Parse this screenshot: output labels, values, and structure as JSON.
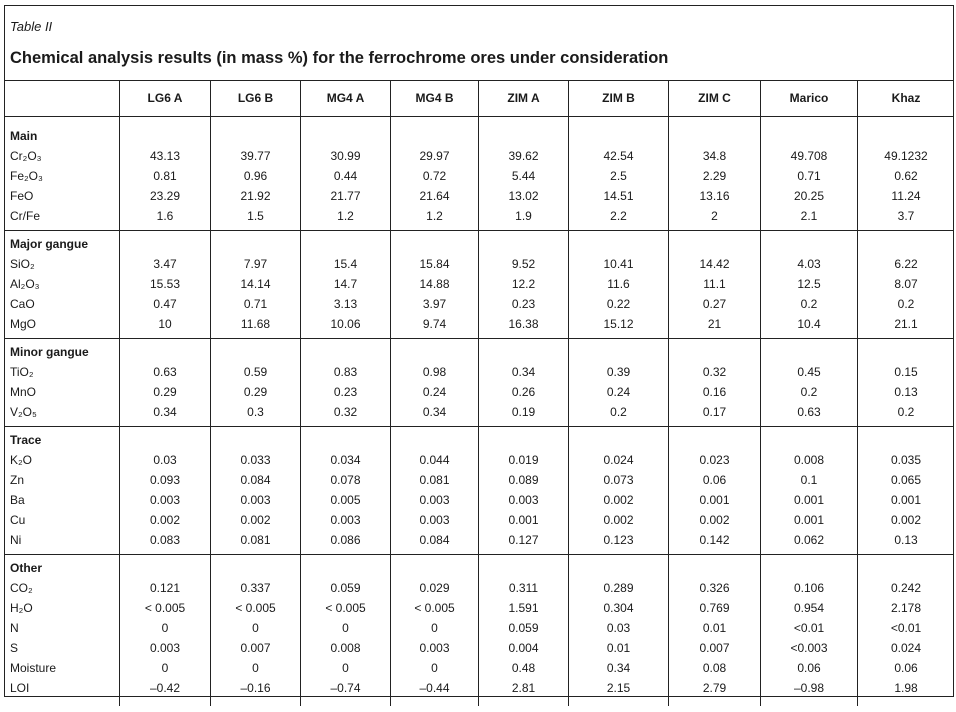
{
  "caption": "Table II",
  "title": "Chemical analysis results (in mass %) for the ferrochrome ores under consideration",
  "columns": [
    "",
    "LG6 A",
    "LG6 B",
    "MG4 A",
    "MG4 B",
    "ZIM A",
    "ZIM B",
    "ZIM C",
    "Marico",
    "Khaz"
  ],
  "sections": [
    {
      "name": "Main",
      "rows": [
        {
          "label": "Cr₂O₃",
          "values": [
            "43.13",
            "39.77",
            "30.99",
            "29.97",
            "39.62",
            "42.54",
            "34.8",
            "49.708",
            "49.1232"
          ]
        },
        {
          "label": "Fe₂O₃",
          "values": [
            "0.81",
            "0.96",
            "0.44",
            "0.72",
            "5.44",
            "2.5",
            "2.29",
            "0.71",
            "0.62"
          ]
        },
        {
          "label": "FeO",
          "values": [
            "23.29",
            "21.92",
            "21.77",
            "21.64",
            "13.02",
            "14.51",
            "13.16",
            "20.25",
            "11.24"
          ]
        },
        {
          "label": "Cr/Fe",
          "values": [
            "1.6",
            "1.5",
            "1.2",
            "1.2",
            "1.9",
            "2.2",
            "2",
            "2.1",
            "3.7"
          ]
        }
      ]
    },
    {
      "name": "Major gangue",
      "rows": [
        {
          "label": "SiO₂",
          "values": [
            "3.47",
            "7.97",
            "15.4",
            "15.84",
            "9.52",
            "10.41",
            "14.42",
            "4.03",
            "6.22"
          ]
        },
        {
          "label": "Al₂O₃",
          "values": [
            "15.53",
            "14.14",
            "14.7",
            "14.88",
            "12.2",
            "11.6",
            "11.1",
            "12.5",
            "8.07"
          ]
        },
        {
          "label": "CaO",
          "values": [
            "0.47",
            "0.71",
            "3.13",
            "3.97",
            "0.23",
            "0.22",
            "0.27",
            "0.2",
            "0.2"
          ]
        },
        {
          "label": "MgO",
          "values": [
            "10",
            "11.68",
            "10.06",
            "9.74",
            "16.38",
            "15.12",
            "21",
            "10.4",
            "21.1"
          ]
        }
      ]
    },
    {
      "name": "Minor gangue",
      "rows": [
        {
          "label": "TiO₂",
          "values": [
            "0.63",
            "0.59",
            "0.83",
            "0.98",
            "0.34",
            "0.39",
            "0.32",
            "0.45",
            "0.15"
          ]
        },
        {
          "label": "MnO",
          "values": [
            "0.29",
            "0.29",
            "0.23",
            "0.24",
            "0.26",
            "0.24",
            "0.16",
            "0.2",
            "0.13"
          ]
        },
        {
          "label": "V₂O₅",
          "values": [
            "0.34",
            "0.3",
            "0.32",
            "0.34",
            "0.19",
            "0.2",
            "0.17",
            "0.63",
            "0.2"
          ]
        }
      ]
    },
    {
      "name": "Trace",
      "rows": [
        {
          "label": "K₂O",
          "values": [
            "0.03",
            "0.033",
            "0.034",
            "0.044",
            "0.019",
            "0.024",
            "0.023",
            "0.008",
            "0.035"
          ]
        },
        {
          "label": "Zn",
          "values": [
            "0.093",
            "0.084",
            "0.078",
            "0.081",
            "0.089",
            "0.073",
            "0.06",
            "0.1",
            "0.065"
          ]
        },
        {
          "label": "Ba",
          "values": [
            "0.003",
            "0.003",
            "0.005",
            "0.003",
            "0.003",
            "0.002",
            "0.001",
            "0.001",
            "0.001"
          ]
        },
        {
          "label": "Cu",
          "values": [
            "0.002",
            "0.002",
            "0.003",
            "0.003",
            "0.001",
            "0.002",
            "0.002",
            "0.001",
            "0.002"
          ]
        },
        {
          "label": "Ni",
          "values": [
            "0.083",
            "0.081",
            "0.086",
            "0.084",
            "0.127",
            "0.123",
            "0.142",
            "0.062",
            "0.13"
          ]
        }
      ]
    },
    {
      "name": "Other",
      "rows": [
        {
          "label": "CO₂",
          "values": [
            "0.121",
            "0.337",
            "0.059",
            "0.029",
            "0.311",
            "0.289",
            "0.326",
            "0.106",
            "0.242"
          ]
        },
        {
          "label": "H₂O",
          "values": [
            "< 0.005",
            "< 0.005",
            "< 0.005",
            "< 0.005",
            "1.591",
            "0.304",
            "0.769",
            "0.954",
            "2.178"
          ]
        },
        {
          "label": "N",
          "values": [
            "0",
            "0",
            "0",
            "0",
            "0.059",
            "0.03",
            "0.01",
            "<0.01",
            "<0.01"
          ]
        },
        {
          "label": "S",
          "values": [
            "0.003",
            "0.007",
            "0.008",
            "0.003",
            "0.004",
            "0.01",
            "0.007",
            "<0.003",
            "0.024"
          ]
        },
        {
          "label": "Moisture",
          "values": [
            "0",
            "0",
            "0",
            "0",
            "0.48",
            "0.34",
            "0.08",
            "0.06",
            "0.06"
          ]
        },
        {
          "label": "LOI",
          "values": [
            "–0.42",
            "–0.16",
            "–0.74",
            "–0.44",
            "2.81",
            "2.15",
            "2.79",
            "–0.98",
            "1.98"
          ]
        }
      ]
    }
  ]
}
